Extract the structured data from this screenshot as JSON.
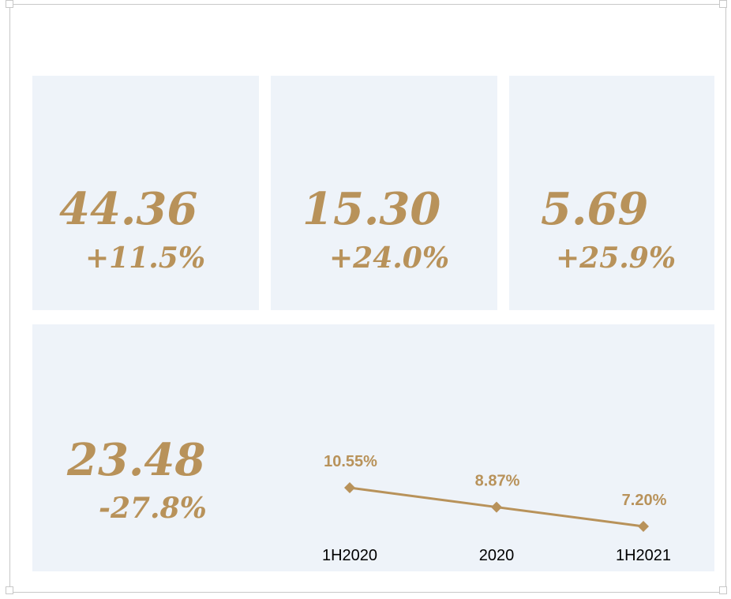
{
  "cards": [
    {
      "value": "44.36",
      "change": "+11.5%"
    },
    {
      "value": "15.30",
      "change": "+24.0%"
    },
    {
      "value": "5.69",
      "change": "+25.9%"
    },
    {
      "value": "23.48",
      "change": "-27.8%"
    }
  ],
  "chart_data": {
    "type": "line",
    "categories": [
      "1H2020",
      "2020",
      "1H2021"
    ],
    "values": [
      10.55,
      8.87,
      7.2
    ],
    "value_labels": [
      "10.55%",
      "8.87%",
      "7.20%"
    ],
    "color": "#b8925a"
  }
}
